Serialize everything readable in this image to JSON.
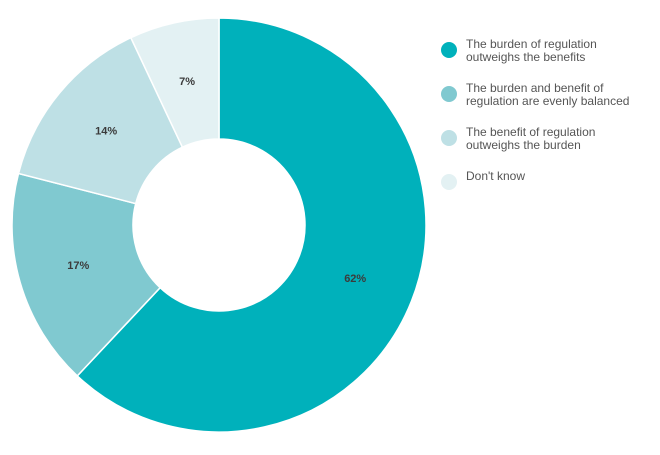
{
  "chart_data": {
    "type": "pie",
    "title": "",
    "categories": [
      "The burden of regulation\noutweighs the benefits",
      "The burden and benefit of\nregulation are evenly balanced",
      "The benefit of regulation\noutweighs the burden",
      "Don't know"
    ],
    "values": [
      62,
      17,
      14,
      7
    ],
    "data_labels": [
      "62%",
      "17%",
      "14%",
      "7%"
    ],
    "colors": [
      "#00b1bb",
      "#80c9d0",
      "#bee0e5",
      "#e3f1f3"
    ],
    "legend_position": "right",
    "unit": "%"
  }
}
